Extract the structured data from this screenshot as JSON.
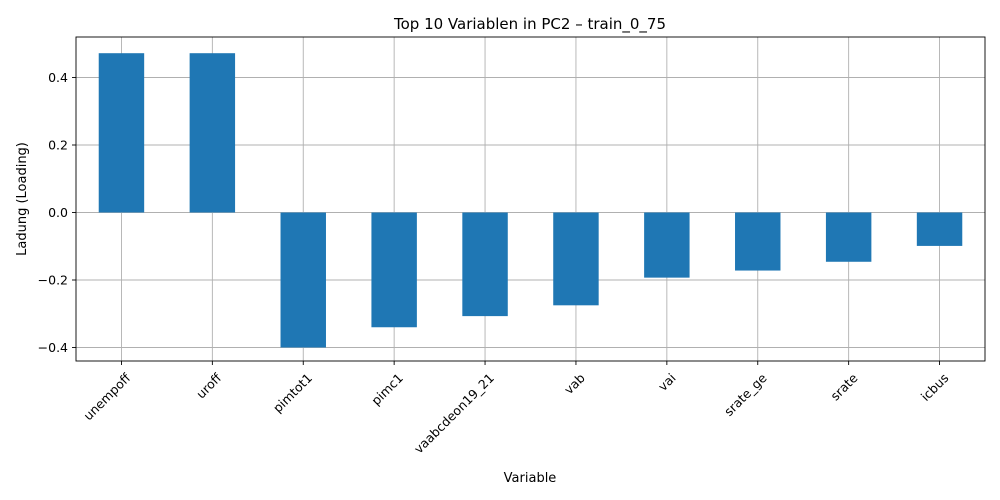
{
  "chart_data": {
    "type": "bar",
    "title": "Top 10 Variablen in PC2 – train_0_75",
    "xlabel": "Variable",
    "ylabel": "Ladung (Loading)",
    "categories": [
      "unempoff",
      "uroff",
      "pimtot1",
      "pimc1",
      "vaabcdeon19_21",
      "vab",
      "vai",
      "srate_ge",
      "srate",
      "icbus"
    ],
    "values": [
      0.472,
      0.472,
      -0.4,
      -0.34,
      -0.307,
      -0.275,
      -0.193,
      -0.172,
      -0.146,
      -0.099
    ],
    "ylim": [
      -0.44,
      0.52
    ],
    "yticks": [
      -0.4,
      -0.2,
      0.0,
      0.2,
      0.4
    ],
    "ytick_labels": [
      "−0.4",
      "−0.2",
      "0.0",
      "0.2",
      "0.4"
    ],
    "bar_color": "#1f77b4",
    "grid": true,
    "legend": "none"
  }
}
